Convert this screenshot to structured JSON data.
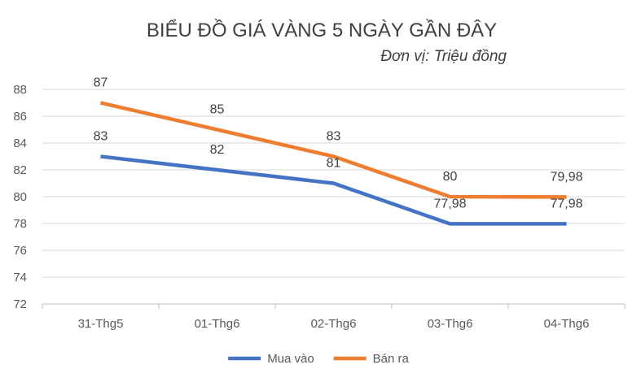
{
  "chart_data": {
    "type": "line",
    "title": "BIỂU ĐỒ GIÁ VÀNG 5 NGÀY GẦN ĐÂY",
    "subtitle": "Đơn vị: Triệu đồng",
    "categories": [
      "31-Thg5",
      "01-Thg6",
      "02-Thg6",
      "03-Thg6",
      "04-Thg6"
    ],
    "series": [
      {
        "name": "Mua vào",
        "values": [
          83,
          82,
          81,
          77.98,
          77.98
        ],
        "labels": [
          "83",
          "82",
          "81",
          "77,98",
          "77,98"
        ],
        "color": "#4472C4"
      },
      {
        "name": "Bán ra",
        "values": [
          87,
          85,
          83,
          80,
          79.98
        ],
        "labels": [
          "87",
          "85",
          "83",
          "80",
          "79,98"
        ],
        "color": "#ED7D31"
      }
    ],
    "ylim": [
      72,
      88
    ],
    "yticks": [
      72,
      74,
      76,
      78,
      80,
      82,
      84,
      86,
      88
    ],
    "grid": true,
    "legend": "bottom",
    "gridColor": "#D9D9D9",
    "axisColor": "#BFBFBF"
  }
}
